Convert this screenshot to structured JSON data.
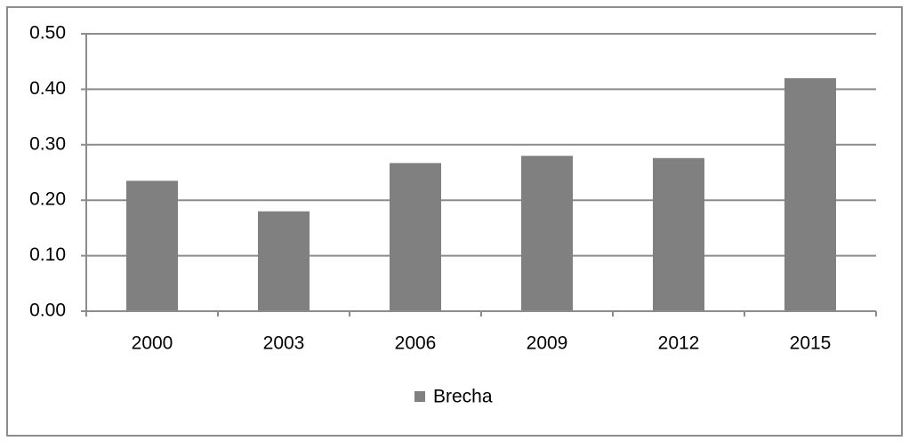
{
  "chart_data": {
    "type": "bar",
    "categories": [
      "2000",
      "2003",
      "2006",
      "2009",
      "2012",
      "2015"
    ],
    "series": [
      {
        "name": "Brecha",
        "color": "#808080",
        "values": [
          0.235,
          0.18,
          0.267,
          0.28,
          0.276,
          0.42
        ]
      }
    ],
    "ylim": [
      0,
      0.5
    ],
    "yticks": [
      {
        "value": 0,
        "label": "0.00"
      },
      {
        "value": 0.1,
        "label": "0.10"
      },
      {
        "value": 0.2,
        "label": "0.20"
      },
      {
        "value": 0.3,
        "label": "0.30"
      },
      {
        "value": 0.4,
        "label": "0.40"
      },
      {
        "value": 0.5,
        "label": "0.50"
      }
    ],
    "grid": true,
    "legend": "bottom"
  }
}
